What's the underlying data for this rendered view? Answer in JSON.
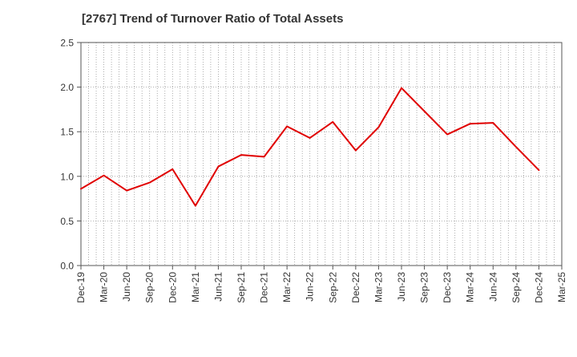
{
  "chart_data": {
    "type": "line",
    "title": "[2767]  Trend of Turnover Ratio of Total Assets",
    "xlabel": "",
    "ylabel": "",
    "ylim": [
      0.0,
      2.5
    ],
    "y_ticks": [
      "0.0",
      "0.5",
      "1.0",
      "1.5",
      "2.0",
      "2.5"
    ],
    "x_tick_labels": [
      "Dec-19",
      "Mar-20",
      "Jun-20",
      "Sep-20",
      "Dec-20",
      "Mar-21",
      "Jun-21",
      "Sep-21",
      "Dec-21",
      "Mar-22",
      "Jun-22",
      "Sep-22",
      "Dec-22",
      "Mar-23",
      "Jun-23",
      "Sep-23",
      "Dec-23",
      "Mar-24",
      "Jun-24",
      "Sep-24",
      "Dec-24",
      "Mar-25"
    ],
    "grid": true,
    "series": [
      {
        "color": "#e00000",
        "x": [
          "Dec-19",
          "Mar-20",
          "Jun-20",
          "Sep-20",
          "Dec-20",
          "Mar-21",
          "Jun-21",
          "Sep-21",
          "Dec-21",
          "Mar-22",
          "Jun-22",
          "Sep-22",
          "Dec-22",
          "Mar-23",
          "Jun-23",
          "Sep-23",
          "Dec-23",
          "Mar-24",
          "Jun-24",
          "Sep-24",
          "Dec-24"
        ],
        "values": [
          0.86,
          1.01,
          0.84,
          0.93,
          1.08,
          0.67,
          1.11,
          1.24,
          1.22,
          1.56,
          1.43,
          1.61,
          1.29,
          1.55,
          1.99,
          1.73,
          1.47,
          1.59,
          1.6,
          1.33,
          1.07
        ]
      }
    ]
  }
}
